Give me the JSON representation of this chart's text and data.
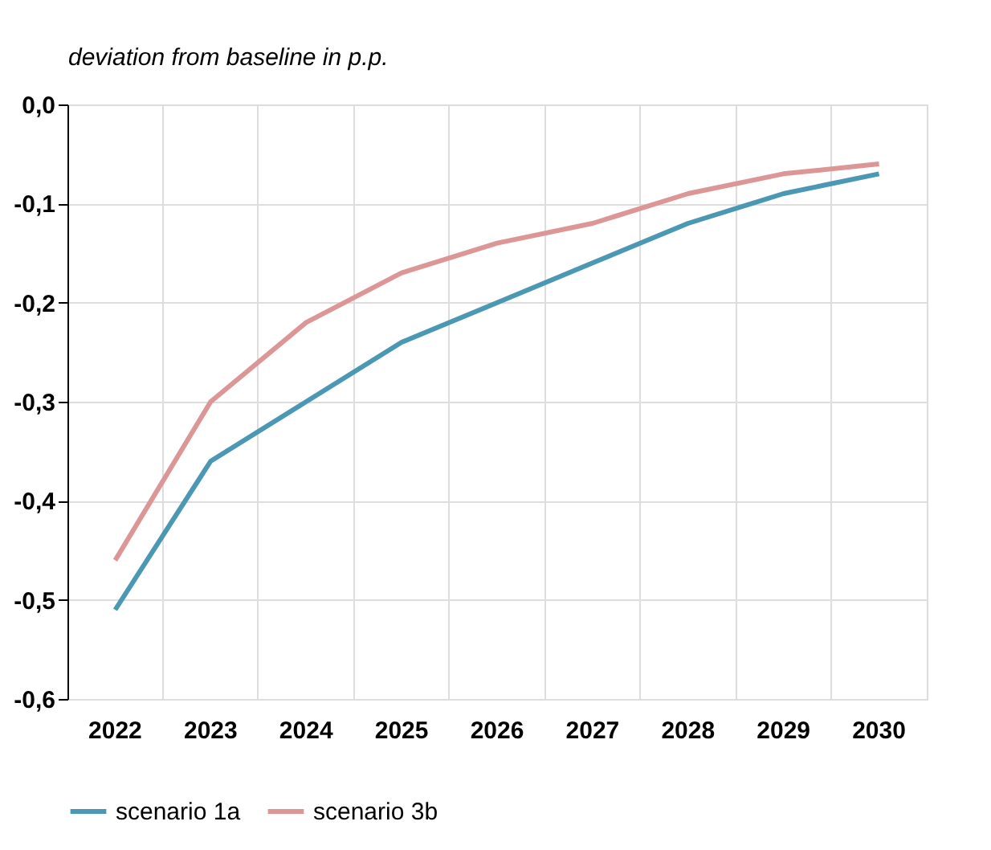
{
  "chart_data": {
    "type": "line",
    "ylabel": "deviation from baseline in p.p.",
    "categories": [
      "2022",
      "2023",
      "2024",
      "2025",
      "2026",
      "2027",
      "2028",
      "2029",
      "2030"
    ],
    "series": [
      {
        "name": "scenario 1a",
        "color": "#4a98b4",
        "values": [
          -0.51,
          -0.36,
          -0.3,
          -0.24,
          -0.2,
          -0.16,
          -0.12,
          -0.09,
          -0.07
        ]
      },
      {
        "name": "scenario 3b",
        "color": "#dc9696",
        "values": [
          -0.46,
          -0.3,
          -0.22,
          -0.17,
          -0.14,
          -0.12,
          -0.09,
          -0.07,
          -0.06
        ]
      }
    ],
    "ylim": [
      -0.6,
      0.0
    ],
    "yticks": [
      {
        "value": 0.0,
        "label": "0,0"
      },
      {
        "value": -0.1,
        "label": "-0,1"
      },
      {
        "value": -0.2,
        "label": "-0,2"
      },
      {
        "value": -0.3,
        "label": "-0,3"
      },
      {
        "value": -0.4,
        "label": "-0,4"
      },
      {
        "value": -0.5,
        "label": "-0,5"
      },
      {
        "value": -0.6,
        "label": "-0,6"
      }
    ],
    "grid": true,
    "legend": "bottom",
    "marker": "none",
    "line_style": "solid"
  }
}
